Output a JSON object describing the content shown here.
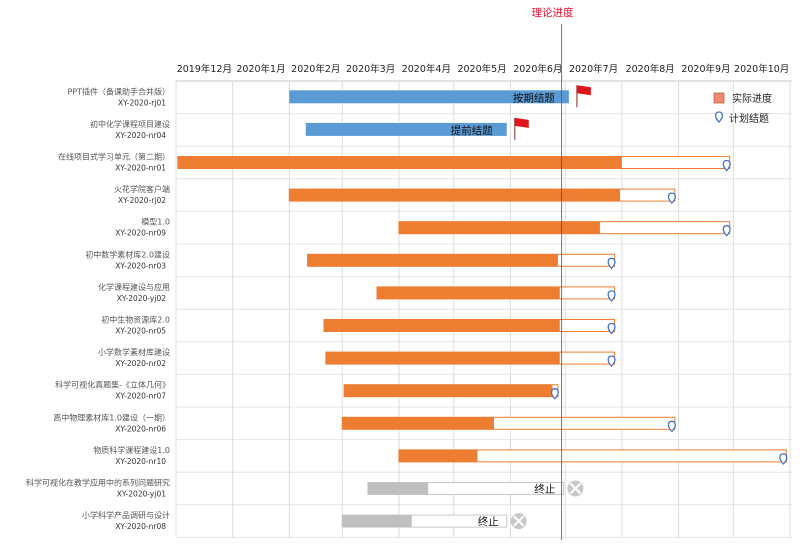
{
  "chart_data": {
    "type": "gantt",
    "theory_label": "理论进度",
    "theory_date": "2020-06-29",
    "x_range": [
      "2019-12-01",
      "2020-11-01"
    ],
    "months": [
      "2019年12月",
      "2020年1月",
      "2020年2月",
      "2020年3月",
      "2020年4月",
      "2020年5月",
      "2020年6月",
      "2020年7月",
      "2020年8月",
      "2020年9月",
      "2020年10月"
    ],
    "legend": {
      "actual": "实际进度",
      "planned": "计划结题",
      "position": "top-right"
    },
    "colors": {
      "completed": "#5b9bd5",
      "actual": "#ed7d31",
      "plan_outline": "#ed7d31",
      "terminated": "#bfbfbf",
      "theory": "#e8102e",
      "flag": "#e0151b"
    },
    "rows": [
      {
        "name": "PPT插件（备课助手合并版）",
        "code": "XY-2020-rj01",
        "status": "completed",
        "start": "2020-02-01",
        "end": "2020-07-03",
        "label": "按期结题"
      },
      {
        "name": "初中化学课程项目建设",
        "code": "XY-2020-nr04",
        "status": "completed",
        "start": "2020-02-10",
        "end": "2020-05-30",
        "label": "提前结题"
      },
      {
        "name": "在线项目式学习单元（第二期）",
        "code": "XY-2020-nr01",
        "status": "active",
        "start": "2019-12-02",
        "actual_end": "2020-08-01",
        "plan_end": "2020-09-29"
      },
      {
        "name": "火花学院客户端",
        "code": "XY-2020-rj02",
        "status": "active",
        "start": "2020-02-01",
        "actual_end": "2020-07-31",
        "plan_end": "2020-08-30"
      },
      {
        "name": "模型1.0",
        "code": "XY-2020-nr09",
        "status": "active",
        "start": "2020-04-01",
        "actual_end": "2020-07-20",
        "plan_end": "2020-09-29"
      },
      {
        "name": "初中数学素材库2.0建设",
        "code": "XY-2020-nr03",
        "status": "active",
        "start": "2020-02-11",
        "actual_end": "2020-06-27",
        "plan_end": "2020-07-28"
      },
      {
        "name": "化学课程建设与应用",
        "code": "XY-2020-yj02",
        "status": "active",
        "start": "2020-03-20",
        "actual_end": "2020-06-28",
        "plan_end": "2020-07-28"
      },
      {
        "name": "初中生物资源库2.0",
        "code": "XY-2020-nr05",
        "status": "active",
        "start": "2020-02-20",
        "actual_end": "2020-06-28",
        "plan_end": "2020-07-28"
      },
      {
        "name": "小学数学素材库建设",
        "code": "XY-2020-nr02",
        "status": "active",
        "start": "2020-02-21",
        "actual_end": "2020-06-28",
        "plan_end": "2020-07-28"
      },
      {
        "name": "科学可视化真题集-《立体几何》",
        "code": "XY-2020-nr07",
        "status": "active",
        "start": "2020-03-02",
        "actual_end": "2020-06-24",
        "plan_end": "2020-06-27"
      },
      {
        "name": "高中物理素材库1.0建设（一期）",
        "code": "XY-2020-nr06",
        "status": "active",
        "start": "2020-03-01",
        "actual_end": "2020-05-23",
        "plan_end": "2020-08-30"
      },
      {
        "name": "物质科学课程建设1.0",
        "code": "XY-2020-nr10",
        "status": "active",
        "start": "2020-04-01",
        "actual_end": "2020-05-14",
        "plan_end": "2020-10-30"
      },
      {
        "name": "科学可视化在教学应用中的系列问题研究",
        "code": "XY-2020-yj01",
        "status": "terminated",
        "start": "2020-03-15",
        "actual_end": "2020-04-17",
        "plan_end": "2020-06-30",
        "label": "终止"
      },
      {
        "name": "小学科学产品调研与设计",
        "code": "XY-2020-nr08",
        "status": "terminated",
        "start": "2020-03-01",
        "actual_end": "2020-04-08",
        "plan_end": "2020-05-30",
        "label": "终止"
      }
    ]
  }
}
